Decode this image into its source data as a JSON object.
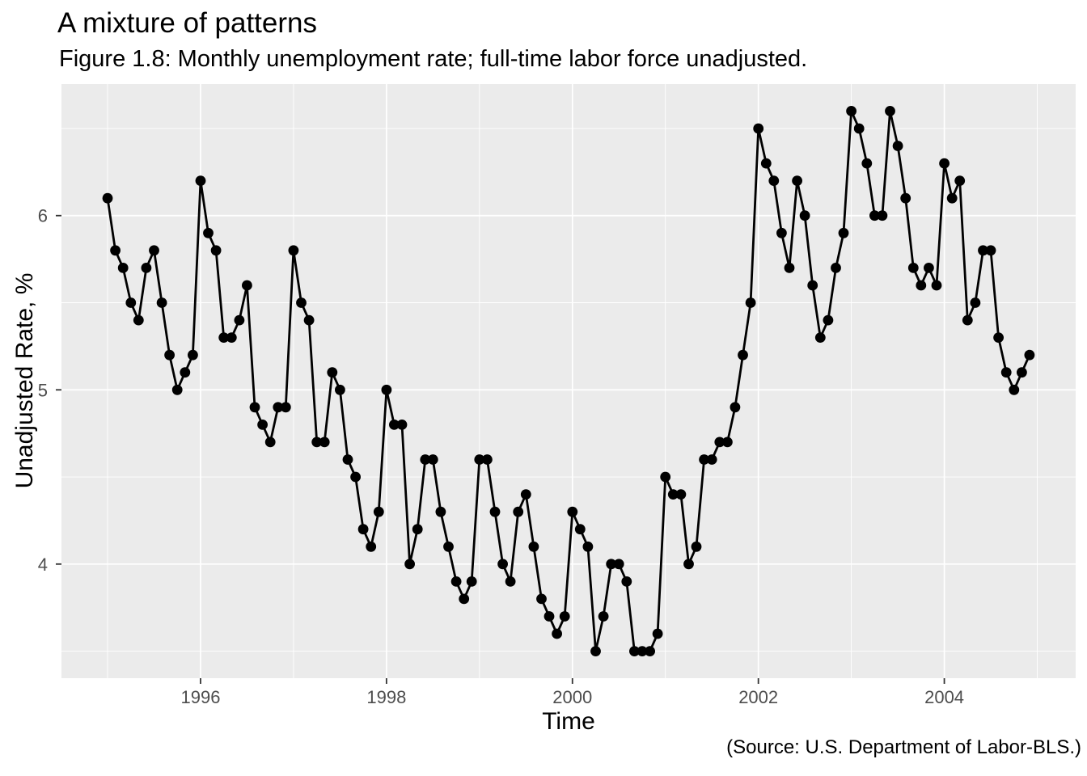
{
  "chart_data": {
    "type": "line",
    "title": "A mixture of patterns",
    "subtitle": "Figure 1.8: Monthly unemployment rate; full-time labor force unadjusted.",
    "caption": "(Source: U.S. Department of Labor-BLS.)",
    "xlabel": "Time",
    "ylabel": "Unadjusted Rate, %",
    "legend": "none",
    "grid": true,
    "marker": "filled-circle",
    "x_domain": [
      1994.504,
      2005.413
    ],
    "y_domain": [
      3.345,
      6.755
    ],
    "x_ticks": [
      {
        "label": "1996",
        "value": 1996
      },
      {
        "label": "1998",
        "value": 1998
      },
      {
        "label": "2000",
        "value": 2000
      },
      {
        "label": "2002",
        "value": 2002
      },
      {
        "label": "2004",
        "value": 2004
      }
    ],
    "x_minor_values": [
      1995,
      1997,
      1999,
      2001,
      2003,
      2005
    ],
    "y_ticks": [
      {
        "label": "4",
        "value": 4
      },
      {
        "label": "5",
        "value": 5
      },
      {
        "label": "6",
        "value": 6
      }
    ],
    "y_minor_values": [
      3.5,
      4.5,
      5.5,
      6.5
    ],
    "series_start": {
      "year": 1995,
      "month": 1
    },
    "frequency": "monthly",
    "values": [
      6.1,
      5.8,
      5.7,
      5.5,
      5.4,
      5.7,
      5.8,
      5.5,
      5.2,
      5.0,
      5.1,
      5.2,
      6.2,
      5.9,
      5.8,
      5.3,
      5.3,
      5.4,
      5.6,
      4.9,
      4.8,
      4.7,
      4.9,
      4.9,
      5.8,
      5.5,
      5.4,
      4.7,
      4.7,
      5.1,
      5.0,
      4.6,
      4.5,
      4.2,
      4.1,
      4.3,
      5.0,
      4.8,
      4.8,
      4.0,
      4.2,
      4.6,
      4.6,
      4.3,
      4.1,
      3.9,
      3.8,
      3.9,
      4.6,
      4.6,
      4.3,
      4.0,
      3.9,
      4.3,
      4.4,
      4.1,
      3.8,
      3.7,
      3.6,
      3.7,
      4.3,
      4.2,
      4.1,
      3.5,
      3.7,
      4.0,
      4.0,
      3.9,
      3.5,
      3.5,
      3.5,
      3.6,
      4.5,
      4.4,
      4.4,
      4.0,
      4.1,
      4.6,
      4.6,
      4.7,
      4.7,
      4.9,
      5.2,
      5.5,
      6.5,
      6.3,
      6.2,
      5.9,
      5.7,
      6.2,
      6.0,
      5.6,
      5.3,
      5.4,
      5.7,
      5.9,
      6.6,
      6.5,
      6.3,
      6.0,
      6.0,
      6.6,
      6.4,
      6.1,
      5.7,
      5.6,
      5.7,
      5.6,
      6.3,
      6.1,
      6.2,
      5.4,
      5.5,
      5.8,
      5.8,
      5.3,
      5.1,
      5.0,
      5.1,
      5.2
    ],
    "colors": {
      "page_bg": "#FFFFFF",
      "panel_bg": "#EBEBEB",
      "grid": "#FFFFFF",
      "line": "#000000",
      "point": "#000000",
      "tick_text": "#4D4D4D",
      "tick_mark": "#333333",
      "text": "#000000"
    }
  }
}
